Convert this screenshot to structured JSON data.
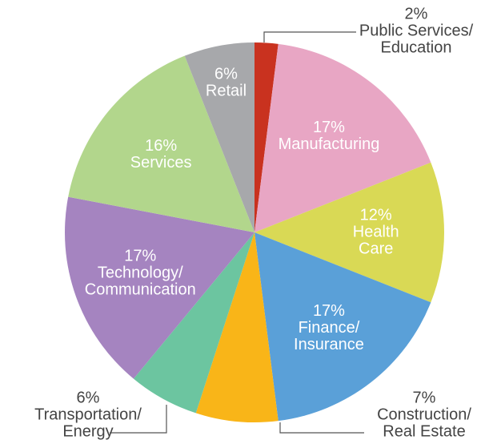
{
  "chart_data": {
    "type": "pie",
    "categories": [
      [
        "Public Services/",
        "Education"
      ],
      [
        "Manufacturing"
      ],
      [
        "Health",
        "Care"
      ],
      [
        "Finance/",
        "Insurance"
      ],
      [
        "Construction/",
        "Real Estate"
      ],
      [
        "Transportation/",
        "Energy"
      ],
      [
        "Technology/",
        "Communication"
      ],
      [
        "Services"
      ],
      [
        "Retail"
      ]
    ],
    "values": [
      2,
      17,
      12,
      17,
      7,
      6,
      17,
      16,
      6
    ],
    "value_labels": [
      "2%",
      "17%",
      "12%",
      "17%",
      "7%",
      "6%",
      "17%",
      "16%",
      "6%"
    ],
    "colors": [
      "#c9321f",
      "#e8a6c4",
      "#d9d955",
      "#5aa0d8",
      "#f9b518",
      "#6cc5a0",
      "#a584c0",
      "#b2d68c",
      "#a7a8ab"
    ]
  }
}
